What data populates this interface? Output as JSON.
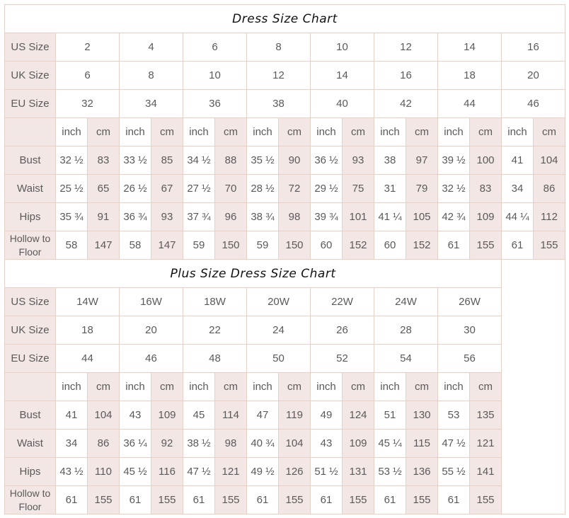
{
  "regular": {
    "title": "Dress Size Chart",
    "size_rows": [
      {
        "label": "US Size",
        "values": [
          "2",
          "4",
          "6",
          "8",
          "10",
          "12",
          "14",
          "16"
        ]
      },
      {
        "label": "UK Size",
        "values": [
          "6",
          "8",
          "10",
          "12",
          "14",
          "16",
          "18",
          "20"
        ]
      },
      {
        "label": "EU Size",
        "values": [
          "32",
          "34",
          "36",
          "38",
          "40",
          "42",
          "44",
          "46"
        ]
      }
    ],
    "units": {
      "inch": "inch",
      "cm": "cm"
    },
    "measurements": [
      {
        "label": "Bust",
        "values": [
          [
            "32 ½",
            "83"
          ],
          [
            "33 ½",
            "85"
          ],
          [
            "34 ½",
            "88"
          ],
          [
            "35 ½",
            "90"
          ],
          [
            "36 ½",
            "93"
          ],
          [
            "38",
            "97"
          ],
          [
            "39 ½",
            "100"
          ],
          [
            "41",
            "104"
          ]
        ]
      },
      {
        "label": "Waist",
        "values": [
          [
            "25 ½",
            "65"
          ],
          [
            "26 ½",
            "67"
          ],
          [
            "27 ½",
            "70"
          ],
          [
            "28 ½",
            "72"
          ],
          [
            "29 ½",
            "75"
          ],
          [
            "31",
            "79"
          ],
          [
            "32 ½",
            "83"
          ],
          [
            "34",
            "86"
          ]
        ]
      },
      {
        "label": "Hips",
        "values": [
          [
            "35 ¾",
            "91"
          ],
          [
            "36 ¾",
            "93"
          ],
          [
            "37 ¾",
            "96"
          ],
          [
            "38 ¾",
            "98"
          ],
          [
            "39 ¾",
            "101"
          ],
          [
            "41 ¼",
            "105"
          ],
          [
            "42 ¾",
            "109"
          ],
          [
            "44 ¼",
            "112"
          ]
        ]
      },
      {
        "label": "Hollow to Floor",
        "values": [
          [
            "58",
            "147"
          ],
          [
            "58",
            "147"
          ],
          [
            "59",
            "150"
          ],
          [
            "59",
            "150"
          ],
          [
            "60",
            "152"
          ],
          [
            "60",
            "152"
          ],
          [
            "61",
            "155"
          ],
          [
            "61",
            "155"
          ]
        ]
      }
    ]
  },
  "plus": {
    "title": "Plus Size Dress Size Chart",
    "size_rows": [
      {
        "label": "US Size",
        "values": [
          "14W",
          "16W",
          "18W",
          "20W",
          "22W",
          "24W",
          "26W"
        ]
      },
      {
        "label": "UK Size",
        "values": [
          "18",
          "20",
          "22",
          "24",
          "26",
          "28",
          "30"
        ]
      },
      {
        "label": "EU Size",
        "values": [
          "44",
          "46",
          "48",
          "50",
          "52",
          "54",
          "56"
        ]
      }
    ],
    "units": {
      "inch": "inch",
      "cm": "cm"
    },
    "measurements": [
      {
        "label": "Bust",
        "values": [
          [
            "41",
            "104"
          ],
          [
            "43",
            "109"
          ],
          [
            "45",
            "114"
          ],
          [
            "47",
            "119"
          ],
          [
            "49",
            "124"
          ],
          [
            "51",
            "130"
          ],
          [
            "53",
            "135"
          ]
        ]
      },
      {
        "label": "Waist",
        "values": [
          [
            "34",
            "86"
          ],
          [
            "36 ¼",
            "92"
          ],
          [
            "38 ½",
            "98"
          ],
          [
            "40 ¾",
            "104"
          ],
          [
            "43",
            "109"
          ],
          [
            "45 ¼",
            "115"
          ],
          [
            "47 ½",
            "121"
          ]
        ]
      },
      {
        "label": "Hips",
        "values": [
          [
            "43 ½",
            "110"
          ],
          [
            "45 ½",
            "116"
          ],
          [
            "47 ½",
            "121"
          ],
          [
            "49 ½",
            "126"
          ],
          [
            "51 ½",
            "131"
          ],
          [
            "53 ½",
            "136"
          ],
          [
            "55 ½",
            "141"
          ]
        ]
      },
      {
        "label": "Hollow to Floor",
        "values": [
          [
            "61",
            "155"
          ],
          [
            "61",
            "155"
          ],
          [
            "61",
            "155"
          ],
          [
            "61",
            "155"
          ],
          [
            "61",
            "155"
          ],
          [
            "61",
            "155"
          ],
          [
            "61",
            "155"
          ]
        ]
      }
    ]
  },
  "colors": {
    "border": "#e5d1c8",
    "shaded": "#f2e7e4",
    "text": "#5a5a5a"
  }
}
